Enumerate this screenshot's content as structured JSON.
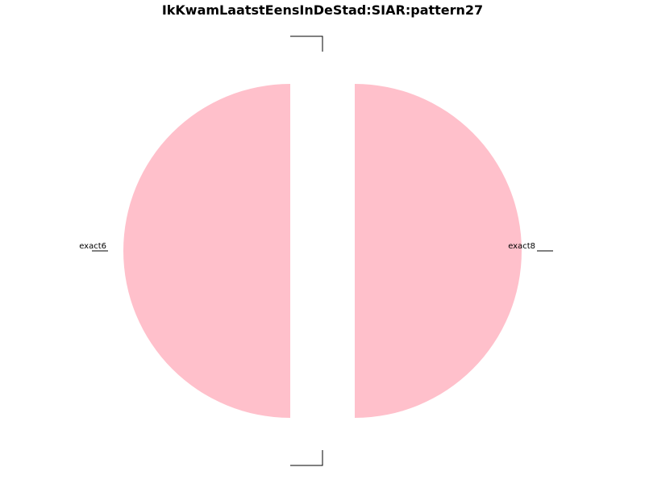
{
  "chart_data": {
    "type": "pie",
    "title": "IkKwamLaatstEensInDeStad:SIAR:pattern27",
    "slices": [
      {
        "label": "exact6",
        "value": 0.5,
        "color": "#ffc0cb"
      },
      {
        "label": "",
        "value": 0.0,
        "color": "#ffc0cb"
      },
      {
        "label": "exact8",
        "value": 0.5,
        "color": "#ffc0cb"
      },
      {
        "label": "",
        "value": 0.0,
        "color": "#ffc0cb"
      }
    ],
    "legend": "none"
  }
}
